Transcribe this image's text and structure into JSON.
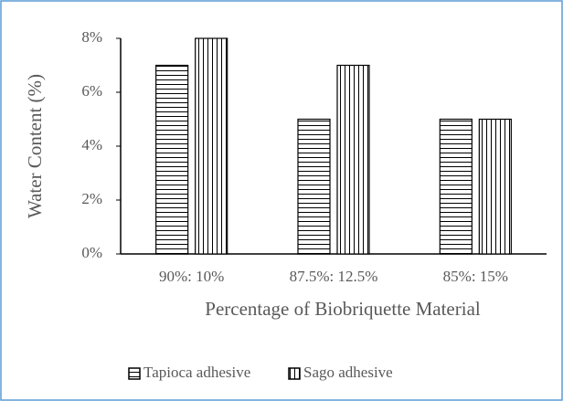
{
  "chart_data": {
    "type": "bar",
    "x_label": "Percentage of Biobriquette Material",
    "y_label": "Water Content (%)",
    "categories": [
      "90%: 10%",
      "87.5%: 12.5%",
      "85%: 15%"
    ],
    "series": [
      {
        "name": "Tapioca adhesive",
        "color": "#000000",
        "pattern": "horizontal",
        "values": [
          7,
          5,
          5
        ]
      },
      {
        "name": "Sago adhesive",
        "color": "#000000",
        "pattern": "vertical",
        "values": [
          8,
          7,
          5
        ]
      }
    ],
    "ylim": [
      0,
      8
    ],
    "yticks": [
      {
        "value": 0,
        "label": "0%"
      },
      {
        "value": 2,
        "label": "2%"
      },
      {
        "value": 4,
        "label": "4%"
      },
      {
        "value": 6,
        "label": "6%"
      },
      {
        "value": 8,
        "label": "8%"
      }
    ],
    "grid": false,
    "legend": "bottom"
  }
}
